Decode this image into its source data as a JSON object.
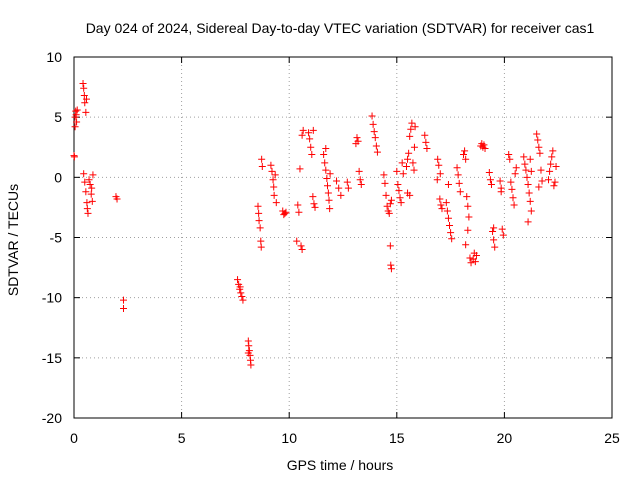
{
  "chart_data": {
    "type": "scatter",
    "title": "Day 024 of 2024, Sidereal Day-to-day VTEC variation (SDTVAR) for receiver cas1",
    "xlabel": "GPS time / hours",
    "ylabel": "SDTVAR / TECUs",
    "xlim": [
      0,
      25
    ],
    "ylim": [
      -20,
      10
    ],
    "xticks": [
      0,
      5,
      10,
      15,
      20,
      25
    ],
    "yticks": [
      -20,
      -15,
      -10,
      -5,
      0,
      5,
      10
    ],
    "grid": true,
    "marker": "+",
    "colors": {
      "points": "#ff0000",
      "grid": "#a0a0a0",
      "axes": "#000000"
    },
    "series": [
      {
        "name": "SDTVAR",
        "points": [
          [
            0.0,
            1.8
          ],
          [
            0.02,
            1.7
          ],
          [
            0.05,
            4.2
          ],
          [
            0.05,
            5.0
          ],
          [
            0.08,
            5.5
          ],
          [
            0.1,
            5.2
          ],
          [
            0.12,
            4.6
          ],
          [
            0.15,
            5.6
          ],
          [
            0.42,
            7.8
          ],
          [
            0.45,
            7.4
          ],
          [
            0.48,
            6.8
          ],
          [
            0.5,
            6.2
          ],
          [
            0.55,
            5.4
          ],
          [
            0.58,
            6.5
          ],
          [
            0.45,
            0.3
          ],
          [
            0.5,
            -0.4
          ],
          [
            0.55,
            -1.2
          ],
          [
            0.6,
            -2.1
          ],
          [
            0.62,
            -2.6
          ],
          [
            0.65,
            -3.0
          ],
          [
            0.7,
            -0.2
          ],
          [
            0.75,
            -0.6
          ],
          [
            0.8,
            -1.4
          ],
          [
            0.85,
            -2.0
          ],
          [
            0.88,
            0.2
          ],
          [
            0.82,
            -0.9
          ],
          [
            1.95,
            -1.6
          ],
          [
            2.0,
            -1.8
          ],
          [
            2.3,
            -10.2
          ],
          [
            2.3,
            -10.9
          ],
          [
            7.6,
            -8.5
          ],
          [
            7.65,
            -8.9
          ],
          [
            7.7,
            -9.3
          ],
          [
            7.75,
            -9.6
          ],
          [
            7.8,
            -9.9
          ],
          [
            7.85,
            -10.2
          ],
          [
            7.72,
            -9.1
          ],
          [
            8.1,
            -13.6
          ],
          [
            8.12,
            -14.0
          ],
          [
            8.15,
            -14.4
          ],
          [
            8.18,
            -14.8
          ],
          [
            8.2,
            -15.2
          ],
          [
            8.22,
            -15.6
          ],
          [
            8.1,
            -14.6
          ],
          [
            8.55,
            -2.4
          ],
          [
            8.58,
            -3.0
          ],
          [
            8.6,
            -3.6
          ],
          [
            8.65,
            -4.2
          ],
          [
            8.68,
            -5.3
          ],
          [
            8.7,
            -5.8
          ],
          [
            8.72,
            1.5
          ],
          [
            8.75,
            0.9
          ],
          [
            9.2,
            0.5
          ],
          [
            9.25,
            -0.2
          ],
          [
            9.28,
            -0.8
          ],
          [
            9.3,
            -1.5
          ],
          [
            9.35,
            0.2
          ],
          [
            9.4,
            -2.1
          ],
          [
            9.15,
            1.0
          ],
          [
            9.7,
            -2.8
          ],
          [
            9.75,
            -3.1
          ],
          [
            9.8,
            -3.0
          ],
          [
            9.85,
            -2.9
          ],
          [
            10.35,
            -5.3
          ],
          [
            10.4,
            -2.3
          ],
          [
            10.45,
            -2.9
          ],
          [
            10.5,
            0.7
          ],
          [
            10.55,
            -5.7
          ],
          [
            10.6,
            -6.0
          ],
          [
            10.6,
            3.5
          ],
          [
            10.65,
            3.9
          ],
          [
            10.9,
            3.7
          ],
          [
            10.95,
            3.2
          ],
          [
            11.0,
            2.5
          ],
          [
            11.05,
            1.9
          ],
          [
            11.1,
            -1.6
          ],
          [
            11.15,
            -2.2
          ],
          [
            11.2,
            -2.5
          ],
          [
            11.12,
            3.9
          ],
          [
            11.6,
            1.9
          ],
          [
            11.65,
            1.2
          ],
          [
            11.7,
            0.6
          ],
          [
            11.75,
            -0.1
          ],
          [
            11.78,
            -0.7
          ],
          [
            11.82,
            -1.3
          ],
          [
            11.85,
            -1.9
          ],
          [
            11.88,
            -2.6
          ],
          [
            11.7,
            2.4
          ],
          [
            11.9,
            0.3
          ],
          [
            12.2,
            -0.3
          ],
          [
            12.3,
            -0.9
          ],
          [
            12.4,
            -1.5
          ],
          [
            12.7,
            -0.4
          ],
          [
            12.75,
            -0.9
          ],
          [
            13.1,
            2.8
          ],
          [
            13.15,
            3.3
          ],
          [
            13.2,
            3.0
          ],
          [
            13.25,
            0.5
          ],
          [
            13.3,
            -0.2
          ],
          [
            13.35,
            -0.6
          ],
          [
            13.85,
            5.1
          ],
          [
            13.9,
            4.4
          ],
          [
            13.95,
            3.8
          ],
          [
            14.0,
            3.3
          ],
          [
            14.05,
            2.6
          ],
          [
            14.1,
            2.1
          ],
          [
            14.4,
            0.2
          ],
          [
            14.45,
            -0.5
          ],
          [
            14.5,
            -1.5
          ],
          [
            14.55,
            -2.4
          ],
          [
            14.6,
            -2.8
          ],
          [
            14.65,
            -3.0
          ],
          [
            14.7,
            -2.2
          ],
          [
            14.75,
            -1.9
          ],
          [
            14.7,
            -5.7
          ],
          [
            14.72,
            -7.3
          ],
          [
            14.75,
            -7.6
          ],
          [
            15.0,
            0.5
          ],
          [
            15.05,
            -0.6
          ],
          [
            15.1,
            -1.1
          ],
          [
            15.15,
            -1.7
          ],
          [
            15.2,
            -2.1
          ],
          [
            15.25,
            1.2
          ],
          [
            15.3,
            0.3
          ],
          [
            15.45,
            0.9
          ],
          [
            15.5,
            1.5
          ],
          [
            15.55,
            2.0
          ],
          [
            15.6,
            3.4
          ],
          [
            15.65,
            4.0
          ],
          [
            15.7,
            4.5
          ],
          [
            15.75,
            1.2
          ],
          [
            15.8,
            0.6
          ],
          [
            15.5,
            -1.3
          ],
          [
            15.6,
            -1.5
          ],
          [
            15.82,
            2.5
          ],
          [
            15.85,
            4.2
          ],
          [
            16.3,
            3.5
          ],
          [
            16.35,
            2.9
          ],
          [
            16.4,
            2.4
          ],
          [
            16.9,
            1.5
          ],
          [
            16.95,
            1.0
          ],
          [
            17.0,
            -1.8
          ],
          [
            17.05,
            -2.3
          ],
          [
            17.1,
            -2.6
          ],
          [
            16.88,
            -0.2
          ],
          [
            17.02,
            0.3
          ],
          [
            17.3,
            -2.1
          ],
          [
            17.35,
            -2.8
          ],
          [
            17.4,
            -3.4
          ],
          [
            17.45,
            -4.0
          ],
          [
            17.5,
            -4.6
          ],
          [
            17.55,
            -5.1
          ],
          [
            17.4,
            -0.6
          ],
          [
            17.8,
            0.8
          ],
          [
            17.85,
            0.2
          ],
          [
            17.9,
            -0.5
          ],
          [
            17.95,
            -1.2
          ],
          [
            18.1,
            1.9
          ],
          [
            18.15,
            2.2
          ],
          [
            18.2,
            1.5
          ],
          [
            18.25,
            -1.6
          ],
          [
            18.3,
            -2.4
          ],
          [
            18.35,
            -3.3
          ],
          [
            18.4,
            -6.7
          ],
          [
            18.45,
            -7.1
          ],
          [
            18.55,
            -6.8
          ],
          [
            18.6,
            -6.3
          ],
          [
            18.65,
            -7.0
          ],
          [
            18.7,
            -6.5
          ],
          [
            18.2,
            -5.6
          ],
          [
            18.3,
            -4.4
          ],
          [
            18.9,
            2.6
          ],
          [
            18.95,
            2.8
          ],
          [
            19.0,
            2.5
          ],
          [
            19.05,
            2.7
          ],
          [
            19.1,
            2.4
          ],
          [
            19.3,
            0.4
          ],
          [
            19.35,
            -0.2
          ],
          [
            19.4,
            -0.6
          ],
          [
            19.45,
            -4.5
          ],
          [
            19.5,
            -5.2
          ],
          [
            19.55,
            -5.8
          ],
          [
            19.5,
            -4.2
          ],
          [
            19.8,
            -0.3
          ],
          [
            19.85,
            -0.9
          ],
          [
            19.9,
            -4.3
          ],
          [
            19.95,
            -4.8
          ],
          [
            19.85,
            -1.2
          ],
          [
            20.2,
            1.9
          ],
          [
            20.25,
            1.5
          ],
          [
            20.3,
            -0.4
          ],
          [
            20.35,
            -1.0
          ],
          [
            20.4,
            -1.7
          ],
          [
            20.45,
            -2.3
          ],
          [
            20.5,
            0.3
          ],
          [
            20.55,
            0.8
          ],
          [
            20.9,
            1.7
          ],
          [
            20.95,
            1.1
          ],
          [
            21.0,
            0.6
          ],
          [
            21.05,
            0.0
          ],
          [
            21.1,
            -0.6
          ],
          [
            21.15,
            -1.3
          ],
          [
            21.2,
            -2.0
          ],
          [
            21.25,
            -2.8
          ],
          [
            21.1,
            -3.7
          ],
          [
            21.2,
            1.5
          ],
          [
            21.25,
            0.5
          ],
          [
            21.5,
            3.6
          ],
          [
            21.55,
            3.1
          ],
          [
            21.6,
            2.5
          ],
          [
            21.65,
            2.0
          ],
          [
            21.7,
            0.6
          ],
          [
            21.75,
            -0.3
          ],
          [
            21.6,
            -0.8
          ],
          [
            22.05,
            -0.2
          ],
          [
            22.1,
            0.5
          ],
          [
            22.15,
            1.1
          ],
          [
            22.2,
            1.7
          ],
          [
            22.25,
            2.2
          ],
          [
            22.3,
            -0.7
          ],
          [
            22.35,
            -0.4
          ],
          [
            22.4,
            0.9
          ]
        ]
      }
    ]
  }
}
